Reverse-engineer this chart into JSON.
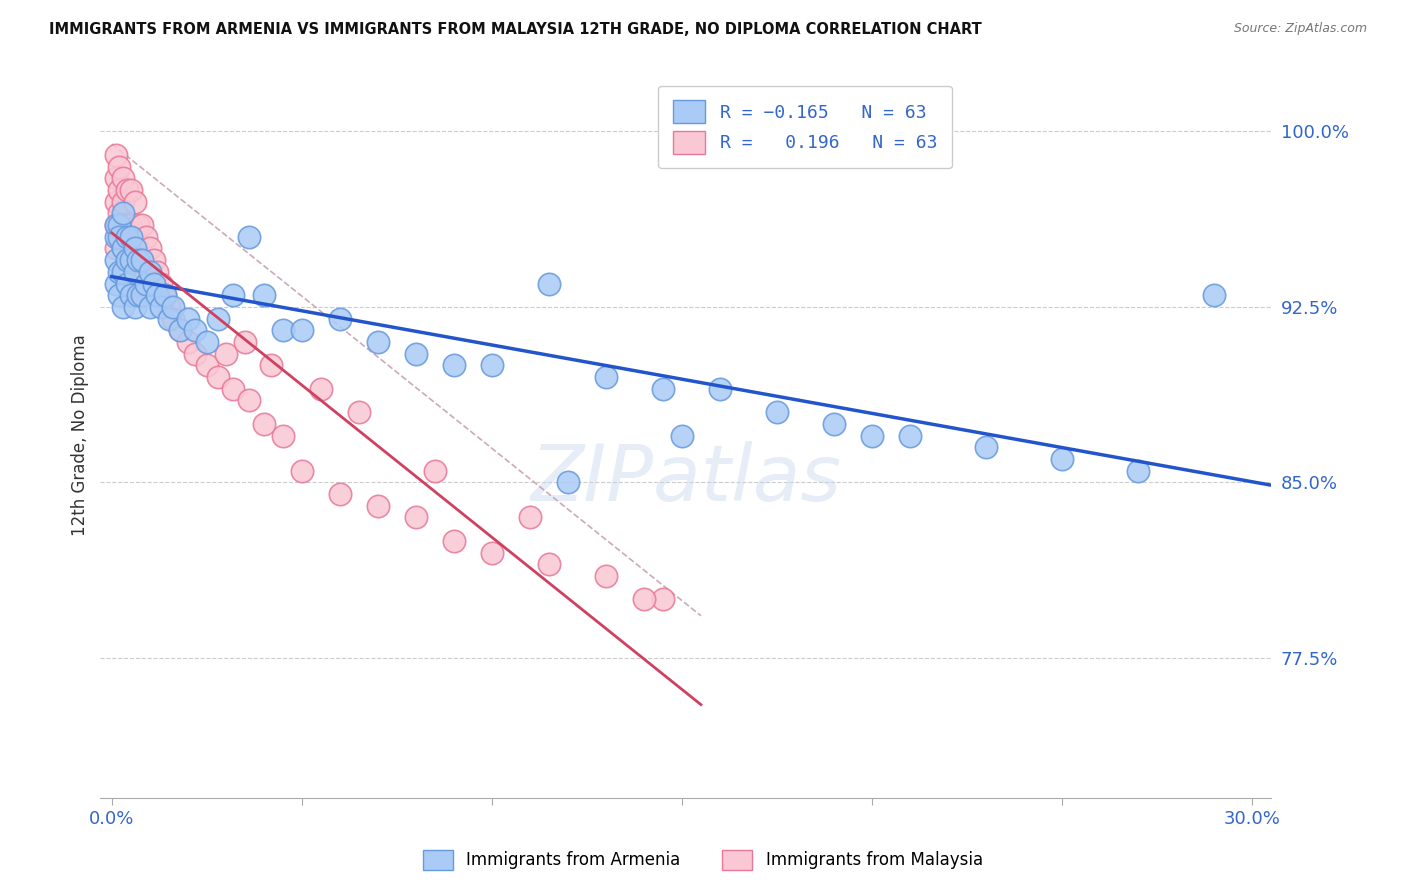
{
  "title": "IMMIGRANTS FROM ARMENIA VS IMMIGRANTS FROM MALAYSIA 12TH GRADE, NO DIPLOMA CORRELATION CHART",
  "source": "Source: ZipAtlas.com",
  "ylabel_label": "12th Grade, No Diploma",
  "ytick_values": [
    1.0,
    0.925,
    0.85,
    0.775
  ],
  "xlim": [
    -0.003,
    0.305
  ],
  "ylim": [
    0.715,
    1.025
  ],
  "armenia_color": "#aacbf5",
  "armenia_edge": "#6699dd",
  "malaysia_color": "#f9c8d4",
  "malaysia_edge": "#e87898",
  "blue_line_color": "#2255cc",
  "pink_line_color": "#d04060",
  "dashed_line_color": "#c8a0b0",
  "tick_color": "#3366cc",
  "watermark": "ZIPatlas",
  "armenia_x": [
    0.001,
    0.001,
    0.001,
    0.001,
    0.002,
    0.002,
    0.002,
    0.002,
    0.003,
    0.003,
    0.003,
    0.003,
    0.004,
    0.004,
    0.004,
    0.005,
    0.005,
    0.005,
    0.006,
    0.006,
    0.006,
    0.007,
    0.007,
    0.008,
    0.008,
    0.009,
    0.01,
    0.01,
    0.011,
    0.012,
    0.013,
    0.014,
    0.015,
    0.016,
    0.018,
    0.02,
    0.022,
    0.025,
    0.028,
    0.032,
    0.036,
    0.04,
    0.045,
    0.05,
    0.06,
    0.07,
    0.08,
    0.09,
    0.1,
    0.115,
    0.13,
    0.145,
    0.16,
    0.175,
    0.19,
    0.21,
    0.23,
    0.25,
    0.27,
    0.12,
    0.15,
    0.2,
    0.29
  ],
  "armenia_y": [
    0.955,
    0.96,
    0.945,
    0.935,
    0.96,
    0.955,
    0.94,
    0.93,
    0.965,
    0.95,
    0.94,
    0.925,
    0.955,
    0.945,
    0.935,
    0.955,
    0.945,
    0.93,
    0.95,
    0.94,
    0.925,
    0.945,
    0.93,
    0.945,
    0.93,
    0.935,
    0.94,
    0.925,
    0.935,
    0.93,
    0.925,
    0.93,
    0.92,
    0.925,
    0.915,
    0.92,
    0.915,
    0.91,
    0.92,
    0.93,
    0.955,
    0.93,
    0.915,
    0.915,
    0.92,
    0.91,
    0.905,
    0.9,
    0.9,
    0.935,
    0.895,
    0.89,
    0.89,
    0.88,
    0.875,
    0.87,
    0.865,
    0.86,
    0.855,
    0.85,
    0.87,
    0.87,
    0.93
  ],
  "malaysia_x": [
    0.001,
    0.001,
    0.001,
    0.001,
    0.001,
    0.002,
    0.002,
    0.002,
    0.002,
    0.003,
    0.003,
    0.003,
    0.003,
    0.004,
    0.004,
    0.004,
    0.005,
    0.005,
    0.005,
    0.006,
    0.006,
    0.006,
    0.007,
    0.007,
    0.007,
    0.008,
    0.008,
    0.009,
    0.009,
    0.01,
    0.01,
    0.011,
    0.012,
    0.013,
    0.014,
    0.015,
    0.016,
    0.018,
    0.02,
    0.022,
    0.025,
    0.028,
    0.032,
    0.036,
    0.04,
    0.045,
    0.05,
    0.06,
    0.07,
    0.08,
    0.09,
    0.1,
    0.115,
    0.13,
    0.145,
    0.03,
    0.035,
    0.042,
    0.055,
    0.065,
    0.085,
    0.11,
    0.14
  ],
  "malaysia_y": [
    0.99,
    0.98,
    0.97,
    0.96,
    0.95,
    0.985,
    0.975,
    0.965,
    0.955,
    0.98,
    0.97,
    0.96,
    0.95,
    0.975,
    0.96,
    0.945,
    0.975,
    0.96,
    0.945,
    0.97,
    0.955,
    0.94,
    0.96,
    0.95,
    0.935,
    0.96,
    0.945,
    0.955,
    0.94,
    0.95,
    0.935,
    0.945,
    0.94,
    0.935,
    0.93,
    0.925,
    0.92,
    0.915,
    0.91,
    0.905,
    0.9,
    0.895,
    0.89,
    0.885,
    0.875,
    0.87,
    0.855,
    0.845,
    0.84,
    0.835,
    0.825,
    0.82,
    0.815,
    0.81,
    0.8,
    0.905,
    0.91,
    0.9,
    0.89,
    0.88,
    0.855,
    0.835,
    0.8
  ]
}
